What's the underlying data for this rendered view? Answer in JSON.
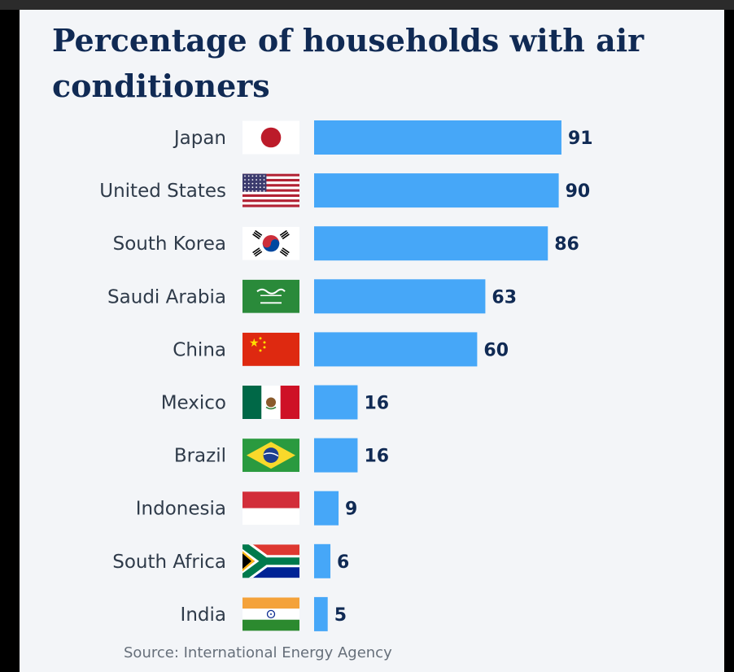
{
  "chart_data": {
    "type": "bar",
    "orientation": "horizontal",
    "title": "Percentage of households with air conditioners",
    "categories": [
      "Japan",
      "United States",
      "South Korea",
      "Saudi Arabia",
      "China",
      "Mexico",
      "Brazil",
      "Indonesia",
      "South Africa",
      "India"
    ],
    "values": [
      91,
      90,
      86,
      63,
      60,
      16,
      16,
      9,
      6,
      5
    ],
    "flags": [
      "japan-flag",
      "usa-flag",
      "south-korea-flag",
      "saudi-arabia-flag",
      "china-flag",
      "mexico-flag",
      "brazil-flag",
      "indonesia-flag",
      "south-africa-flag",
      "india-flag"
    ],
    "xlim": [
      0,
      100
    ],
    "grid": false,
    "legend": "none",
    "bar_color": "#46a7f8",
    "value_label_color": "#102a54",
    "category_label_color": "#2f3b4a"
  },
  "source": "Source: International Energy Agency"
}
